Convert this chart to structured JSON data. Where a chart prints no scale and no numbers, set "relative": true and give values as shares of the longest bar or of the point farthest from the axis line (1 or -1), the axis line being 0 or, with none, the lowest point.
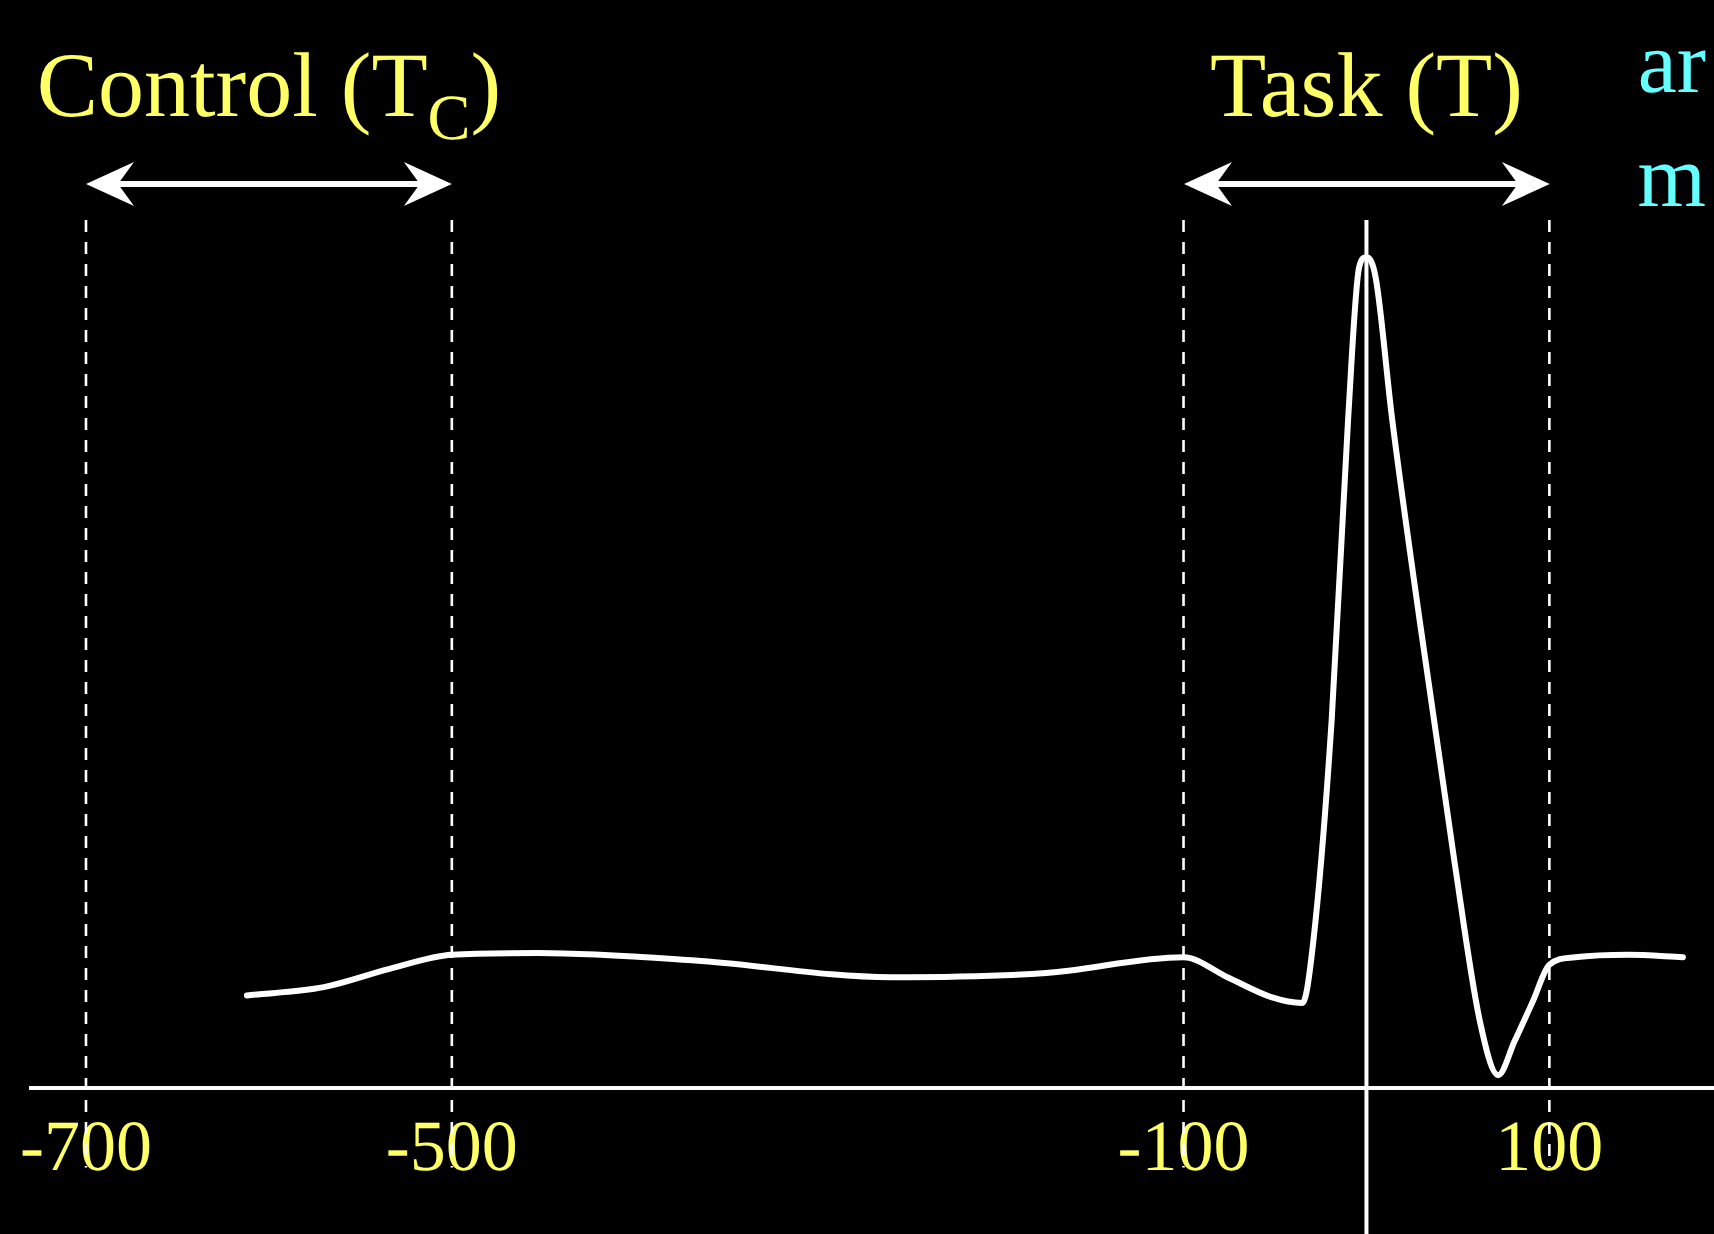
{
  "chart_data": {
    "type": "line",
    "relative": true,
    "color": "#ffffff",
    "x": [
      -612,
      -570,
      -534,
      -500,
      -453,
      -367,
      -260,
      -175,
      -100,
      -76,
      -52,
      -35,
      -29,
      -19,
      -10,
      -4,
      0,
      5,
      14,
      29,
      48,
      62,
      72,
      81,
      91,
      100,
      114,
      143,
      173
    ],
    "values": [
      0.111,
      0.121,
      0.143,
      0.16,
      0.162,
      0.153,
      0.133,
      0.138,
      0.157,
      0.133,
      0.109,
      0.102,
      0.177,
      0.443,
      0.806,
      0.988,
      1.0,
      0.976,
      0.806,
      0.564,
      0.274,
      0.08,
      0.015,
      0.056,
      0.104,
      0.148,
      0.157,
      0.16,
      0.157
    ],
    "xlim": [
      -730,
      190
    ],
    "xticks": [
      -700,
      -500,
      -100,
      100
    ],
    "ref_lines": [
      {
        "axis": "x",
        "value": -700,
        "line_style": "dashed"
      },
      {
        "axis": "x",
        "value": -500,
        "line_style": "dashed"
      },
      {
        "axis": "x",
        "value": -100,
        "line_style": "dashed"
      },
      {
        "axis": "x",
        "value": 100,
        "line_style": "dashed"
      },
      {
        "axis": "x",
        "value": 0,
        "line_style": "solid"
      }
    ],
    "annotations": [
      "Control (T$_{C}$)",
      "Task (T)",
      "ar",
      "m"
    ],
    "grid": false,
    "legend": false,
    "marker": "none",
    "line_style": "solid"
  }
}
